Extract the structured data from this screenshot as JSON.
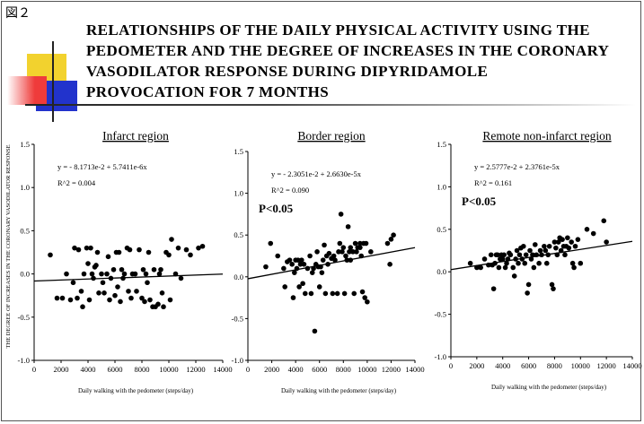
{
  "figure_label": "図２",
  "title_lines": [
    "RELATIONSHIPS OF THE DAILY PHYSICAL ACTIVITY USING THE",
    "PEDOMETER AND THE DEGREE OF INCREASES IN THE CORONARY",
    "VASODILATOR RESPONSE DURING DIPYRIDAMOLE",
    "PROVOCATION FOR 7 MONTHS"
  ],
  "colors": {
    "yellow": "#f2d22e",
    "red": "#ef3b3b",
    "blue": "#2233cc",
    "line": "#000000",
    "points": "#000000"
  },
  "shared_ylabel": "THE DEGREE OF INCREASES IN THE CORONARY VASODILATOR RESPONSE",
  "chart_data": [
    {
      "type": "scatter",
      "title": "Infarct region",
      "xlabel": "Daily walking with the pedometer (steps/day)",
      "ylabel": "THE DEGREE OF INCREASES IN THE CORONARY VASODILATOR RESPONSE",
      "xlim": [
        0,
        14000
      ],
      "ylim": [
        -1.0,
        1.5
      ],
      "x_ticks": [
        "0",
        "2000",
        "4000",
        "6000",
        "8000",
        "10000",
        "12000",
        "14000"
      ],
      "y_ticks": [
        "-1.0",
        "-0.5",
        "0.0",
        "0.5",
        "1.0",
        "1.5"
      ],
      "equation": "y =  - 8.1713e-2 + 5.7411e-6x",
      "r2": "R^2 = 0.004",
      "p_value": "",
      "regression": {
        "intercept": -0.081713,
        "slope": 5.7411e-06
      },
      "points": [
        [
          1200,
          0.22
        ],
        [
          1700,
          -0.28
        ],
        [
          2100,
          -0.28
        ],
        [
          2400,
          0.0
        ],
        [
          2700,
          -0.3
        ],
        [
          2900,
          -0.1
        ],
        [
          3000,
          0.3
        ],
        [
          3200,
          -0.28
        ],
        [
          3300,
          0.28
        ],
        [
          3500,
          -0.2
        ],
        [
          3600,
          -0.38
        ],
        [
          3700,
          0.0
        ],
        [
          3900,
          0.3
        ],
        [
          4000,
          0.12
        ],
        [
          4100,
          -0.3
        ],
        [
          4200,
          0.3
        ],
        [
          4300,
          0.0
        ],
        [
          4400,
          -0.05
        ],
        [
          4500,
          0.08
        ],
        [
          4600,
          0.1
        ],
        [
          4700,
          0.25
        ],
        [
          4800,
          -0.22
        ],
        [
          5000,
          0.0
        ],
        [
          5100,
          -0.1
        ],
        [
          5200,
          -0.22
        ],
        [
          5400,
          0.0
        ],
        [
          5500,
          0.2
        ],
        [
          5600,
          -0.3
        ],
        [
          5700,
          -0.05
        ],
        [
          5900,
          0.05
        ],
        [
          6000,
          -0.25
        ],
        [
          6100,
          0.25
        ],
        [
          6200,
          -0.15
        ],
        [
          6300,
          0.25
        ],
        [
          6400,
          -0.32
        ],
        [
          6500,
          0.05
        ],
        [
          6600,
          -0.05
        ],
        [
          6700,
          0.0
        ],
        [
          6900,
          0.3
        ],
        [
          7000,
          -0.2
        ],
        [
          7100,
          0.28
        ],
        [
          7200,
          -0.28
        ],
        [
          7300,
          0.0
        ],
        [
          7500,
          0.0
        ],
        [
          7600,
          -0.2
        ],
        [
          7800,
          0.28
        ],
        [
          8000,
          -0.28
        ],
        [
          8100,
          0.05
        ],
        [
          8200,
          -0.32
        ],
        [
          8300,
          0.0
        ],
        [
          8400,
          -0.1
        ],
        [
          8500,
          0.25
        ],
        [
          8600,
          -0.3
        ],
        [
          8800,
          -0.38
        ],
        [
          8900,
          0.05
        ],
        [
          9000,
          -0.38
        ],
        [
          9200,
          -0.35
        ],
        [
          9300,
          0.0
        ],
        [
          9400,
          0.05
        ],
        [
          9500,
          -0.22
        ],
        [
          9600,
          -0.38
        ],
        [
          9800,
          0.25
        ],
        [
          10000,
          0.22
        ],
        [
          10100,
          -0.3
        ],
        [
          10200,
          0.4
        ],
        [
          10500,
          0.0
        ],
        [
          10700,
          0.3
        ],
        [
          11300,
          0.28
        ],
        [
          11600,
          0.22
        ],
        [
          12200,
          0.3
        ],
        [
          12500,
          0.32
        ],
        [
          10900,
          -0.05
        ]
      ]
    },
    {
      "type": "scatter",
      "title": "Border region",
      "xlabel": "Daily walking with the pedometer (steps/day)",
      "xlim": [
        0,
        14000
      ],
      "ylim": [
        -1.0,
        1.5
      ],
      "x_ticks": [
        "0",
        "2000",
        "4000",
        "6000",
        "8000",
        "10000",
        "12000",
        "14000"
      ],
      "y_ticks": [
        "-1.0",
        "-0.5",
        "0.0",
        "0.5",
        "1.0",
        "1.5"
      ],
      "equation": "y =  - 2.3051e-2 + 2.6630e-5x",
      "r2": "R^2 = 0.090",
      "p_value": "P<0.05",
      "regression": {
        "intercept": -0.023051,
        "slope": 2.663e-05
      },
      "points": [
        [
          1500,
          0.12
        ],
        [
          1900,
          0.4
        ],
        [
          2500,
          0.25
        ],
        [
          3000,
          0.1
        ],
        [
          3100,
          -0.12
        ],
        [
          3300,
          0.18
        ],
        [
          3500,
          0.2
        ],
        [
          3700,
          0.15
        ],
        [
          3800,
          -0.25
        ],
        [
          3900,
          0.05
        ],
        [
          4000,
          0.2
        ],
        [
          4100,
          0.1
        ],
        [
          4200,
          0.2
        ],
        [
          4300,
          -0.12
        ],
        [
          4400,
          0.15
        ],
        [
          4500,
          0.2
        ],
        [
          4600,
          -0.08
        ],
        [
          4700,
          0.15
        ],
        [
          4800,
          -0.2
        ],
        [
          5000,
          0.1
        ],
        [
          5200,
          0.25
        ],
        [
          5300,
          -0.2
        ],
        [
          5400,
          0.05
        ],
        [
          5500,
          0.1
        ],
        [
          5600,
          -0.65
        ],
        [
          5700,
          0.15
        ],
        [
          5800,
          0.3
        ],
        [
          5900,
          0.12
        ],
        [
          6000,
          -0.12
        ],
        [
          6100,
          0.12
        ],
        [
          6200,
          0.05
        ],
        [
          6300,
          0.2
        ],
        [
          6400,
          0.38
        ],
        [
          6500,
          -0.2
        ],
        [
          6600,
          0.25
        ],
        [
          6700,
          0.15
        ],
        [
          6800,
          0.28
        ],
        [
          7000,
          0.22
        ],
        [
          7100,
          -0.2
        ],
        [
          7200,
          0.25
        ],
        [
          7300,
          0.2
        ],
        [
          7500,
          -0.2
        ],
        [
          7600,
          0.3
        ],
        [
          7700,
          0.4
        ],
        [
          7800,
          0.75
        ],
        [
          7900,
          0.3
        ],
        [
          8000,
          0.35
        ],
        [
          8100,
          -0.2
        ],
        [
          8200,
          0.25
        ],
        [
          8300,
          0.2
        ],
        [
          8400,
          0.6
        ],
        [
          8500,
          0.3
        ],
        [
          8600,
          0.35
        ],
        [
          8800,
          0.3
        ],
        [
          8900,
          -0.2
        ],
        [
          9000,
          0.4
        ],
        [
          9100,
          0.3
        ],
        [
          9200,
          0.35
        ],
        [
          9400,
          0.4
        ],
        [
          9500,
          0.25
        ],
        [
          9600,
          -0.18
        ],
        [
          9700,
          0.4
        ],
        [
          9800,
          -0.25
        ],
        [
          9900,
          0.4
        ],
        [
          10000,
          -0.3
        ],
        [
          10300,
          0.3
        ],
        [
          11700,
          0.4
        ],
        [
          11900,
          0.15
        ],
        [
          12000,
          0.45
        ],
        [
          12200,
          0.5
        ],
        [
          8600,
          0.2
        ],
        [
          9400,
          0.35
        ]
      ]
    },
    {
      "type": "scatter",
      "title": "Remote non-infarct region",
      "xlabel": "Daily walking with the pedometer (steps/day)",
      "xlim": [
        0,
        14000
      ],
      "ylim": [
        -1.0,
        1.5
      ],
      "x_ticks": [
        "0",
        "2000",
        "4000",
        "6000",
        "8000",
        "10000",
        "12000",
        "14000"
      ],
      "y_ticks": [
        "-1.0",
        "-0.5",
        "0.0",
        "0.5",
        "1.0",
        "1.5"
      ],
      "equation": "y = 2.5777e-2 + 2.3761e-5x",
      "r2": "R^2 = 0.161",
      "p_value": "P<0.05",
      "regression": {
        "intercept": 0.025777,
        "slope": 2.3761e-05
      },
      "points": [
        [
          1500,
          0.1
        ],
        [
          2000,
          0.05
        ],
        [
          2300,
          0.05
        ],
        [
          2600,
          0.15
        ],
        [
          2900,
          0.08
        ],
        [
          3100,
          0.2
        ],
        [
          3200,
          0.08
        ],
        [
          3300,
          -0.2
        ],
        [
          3400,
          0.1
        ],
        [
          3500,
          0.2
        ],
        [
          3600,
          0.2
        ],
        [
          3700,
          0.05
        ],
        [
          3800,
          0.15
        ],
        [
          3900,
          0.2
        ],
        [
          4000,
          0.15
        ],
        [
          4100,
          0.2
        ],
        [
          4200,
          0.05
        ],
        [
          4300,
          0.1
        ],
        [
          4400,
          0.15
        ],
        [
          4500,
          0.22
        ],
        [
          4600,
          0.2
        ],
        [
          4800,
          0.05
        ],
        [
          4900,
          -0.05
        ],
        [
          5000,
          0.15
        ],
        [
          5100,
          0.25
        ],
        [
          5200,
          0.1
        ],
        [
          5300,
          0.2
        ],
        [
          5400,
          0.28
        ],
        [
          5500,
          0.15
        ],
        [
          5600,
          0.3
        ],
        [
          5700,
          0.1
        ],
        [
          5800,
          0.2
        ],
        [
          5900,
          -0.25
        ],
        [
          6000,
          -0.15
        ],
        [
          6100,
          0.25
        ],
        [
          6200,
          0.15
        ],
        [
          6300,
          0.2
        ],
        [
          6400,
          0.05
        ],
        [
          6500,
          0.32
        ],
        [
          6600,
          0.2
        ],
        [
          6800,
          0.1
        ],
        [
          6900,
          0.25
        ],
        [
          7000,
          0.2
        ],
        [
          7200,
          0.3
        ],
        [
          7300,
          0.25
        ],
        [
          7400,
          0.1
        ],
        [
          7500,
          0.2
        ],
        [
          7600,
          0.3
        ],
        [
          7800,
          -0.15
        ],
        [
          7900,
          -0.2
        ],
        [
          8000,
          0.35
        ],
        [
          8100,
          0.28
        ],
        [
          8200,
          0.2
        ],
        [
          8300,
          0.35
        ],
        [
          8400,
          0.4
        ],
        [
          8500,
          0.25
        ],
        [
          8600,
          0.38
        ],
        [
          8700,
          0.3
        ],
        [
          8800,
          0.2
        ],
        [
          9000,
          0.4
        ],
        [
          9100,
          0.28
        ],
        [
          9300,
          0.35
        ],
        [
          9400,
          0.1
        ],
        [
          9500,
          0.05
        ],
        [
          9600,
          0.3
        ],
        [
          10000,
          0.1
        ],
        [
          10500,
          0.5
        ],
        [
          11000,
          0.45
        ],
        [
          11800,
          0.6
        ],
        [
          12000,
          0.35
        ],
        [
          9800,
          0.38
        ],
        [
          8900,
          0.3
        ]
      ]
    }
  ]
}
